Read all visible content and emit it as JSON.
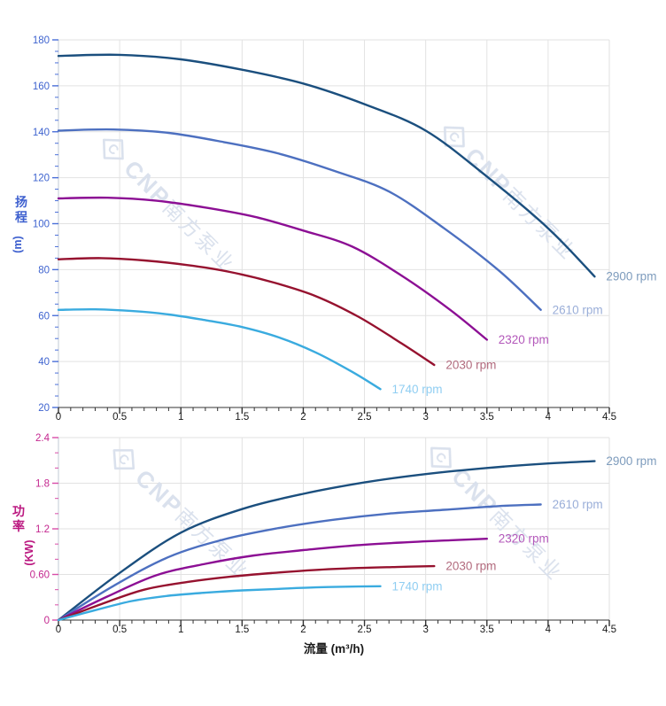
{
  "figure": {
    "background": "#ffffff",
    "grid_color": "#e2e2e2",
    "x_spine_color": "#333333",
    "y_spine_color": "#c2c9d4",
    "x_tick_color": "#333333",
    "x_label_color": "#1a1a1a"
  },
  "watermark": {
    "logo_letter": "C",
    "brand": "CNP",
    "company": "南方泵业",
    "color": "#d9e0ec"
  },
  "x_axis": {
    "title": "流量 (m³/h)",
    "tick_labels": [
      "0",
      "0.5",
      "1",
      "1.5",
      "2",
      "2.5",
      "3",
      "3.5",
      "4",
      "4.5"
    ]
  },
  "chart_data": [
    {
      "id": "head",
      "type": "line",
      "title": "",
      "xlabel": "流量 (m³/h)",
      "ylabel": "扬程 (m)",
      "ylabel_cn": "扬程",
      "ylabel_unit": "(m)",
      "axis_title_color": "#3e60cf",
      "tick_mark_color": "#4a6fd8",
      "tick_label_color": "#3e63cf",
      "xlim": [
        0,
        4.5
      ],
      "ylim": [
        20,
        180
      ],
      "x_major_step": 0.5,
      "x_minor_step": 0.1,
      "y_major_step": 20,
      "y_minor_step": 5,
      "y_tick_labels": [
        "20",
        "40",
        "60",
        "80",
        "100",
        "120",
        "140",
        "160",
        "180"
      ],
      "x_tick_labels": [
        "0",
        "0.5",
        "1",
        "1.5",
        "2",
        "2.5",
        "3",
        "3.5",
        "4",
        "4.5"
      ],
      "grid": true,
      "legend_position": "end-of-curve",
      "series": [
        {
          "name": "2900 rpm",
          "color": "#1b4f7e",
          "label_color": "#7e9cbd",
          "points": [
            [
              0,
              173
            ],
            [
              0.5,
              173.5
            ],
            [
              1,
              171.5
            ],
            [
              1.5,
              167
            ],
            [
              2,
              161
            ],
            [
              2.5,
              152
            ],
            [
              3,
              140.5
            ],
            [
              3.5,
              120.5
            ],
            [
              4,
              98
            ],
            [
              4.38,
              77
            ]
          ]
        },
        {
          "name": "2610 rpm",
          "color": "#4d70c0",
          "label_color": "#9aaed8",
          "points": [
            [
              0,
              140.5
            ],
            [
              0.45,
              141
            ],
            [
              0.9,
              139.5
            ],
            [
              1.35,
              135.5
            ],
            [
              1.8,
              130.5
            ],
            [
              2.25,
              123
            ],
            [
              2.7,
              114
            ],
            [
              3.15,
              98
            ],
            [
              3.6,
              79.5
            ],
            [
              3.94,
              62.5
            ]
          ]
        },
        {
          "name": "2320 rpm",
          "color": "#8c0f94",
          "label_color": "#b358ba",
          "points": [
            [
              0,
              111
            ],
            [
              0.4,
              111.3
            ],
            [
              0.8,
              110
            ],
            [
              1.2,
              107
            ],
            [
              1.6,
              103
            ],
            [
              2,
              97
            ],
            [
              2.4,
              90
            ],
            [
              2.8,
              77.5
            ],
            [
              3.2,
              62.5
            ],
            [
              3.5,
              49.5
            ]
          ]
        },
        {
          "name": "2030 rpm",
          "color": "#96122f",
          "label_color": "#b26b7e",
          "points": [
            [
              0,
              84.5
            ],
            [
              0.35,
              85
            ],
            [
              0.7,
              84
            ],
            [
              1.05,
              82
            ],
            [
              1.4,
              79
            ],
            [
              1.75,
              74.5
            ],
            [
              2.1,
              68.5
            ],
            [
              2.45,
              59.5
            ],
            [
              2.8,
              48
            ],
            [
              3.07,
              38.5
            ]
          ]
        },
        {
          "name": "1740 rpm",
          "color": "#3aabdf",
          "label_color": "#90cef2",
          "points": [
            [
              0,
              62.5
            ],
            [
              0.3,
              62.7
            ],
            [
              0.6,
              62
            ],
            [
              0.9,
              60.5
            ],
            [
              1.2,
              58
            ],
            [
              1.5,
              55
            ],
            [
              1.8,
              50.5
            ],
            [
              2.1,
              44
            ],
            [
              2.4,
              35.5
            ],
            [
              2.63,
              28
            ]
          ]
        }
      ]
    },
    {
      "id": "power",
      "type": "line",
      "title": "",
      "xlabel": "流量 (m³/h)",
      "ylabel": "功率 (KW)",
      "ylabel_cn": "功率",
      "ylabel_unit": "(KW)",
      "axis_title_color": "#bb1880",
      "tick_mark_color": "#d84da8",
      "tick_label_color": "#c4278f",
      "xlim": [
        0,
        4.5
      ],
      "ylim": [
        0,
        2.4
      ],
      "x_major_step": 0.5,
      "x_minor_step": 0.1,
      "y_major_step": 0.6,
      "y_minor_step": 0.2,
      "y_tick_labels": [
        "0",
        "0.60",
        "1.2",
        "1.8",
        "2.4"
      ],
      "x_tick_labels": [
        "0",
        "0.5",
        "1",
        "1.5",
        "2",
        "2.5",
        "3",
        "3.5",
        "4",
        "4.5"
      ],
      "grid": true,
      "legend_position": "end-of-curve",
      "series": [
        {
          "name": "2900 rpm",
          "color": "#1b4f7e",
          "label_color": "#7e9cbd",
          "points": [
            [
              0,
              0
            ],
            [
              0.5,
              0.62
            ],
            [
              1,
              1.15
            ],
            [
              1.5,
              1.46
            ],
            [
              2,
              1.66
            ],
            [
              2.5,
              1.81
            ],
            [
              3,
              1.92
            ],
            [
              3.5,
              2.0
            ],
            [
              4,
              2.06
            ],
            [
              4.38,
              2.09
            ]
          ]
        },
        {
          "name": "2610 rpm",
          "color": "#4d70c0",
          "label_color": "#9aaed8",
          "points": [
            [
              0,
              0
            ],
            [
              0.45,
              0.45
            ],
            [
              0.9,
              0.83
            ],
            [
              1.35,
              1.06
            ],
            [
              1.8,
              1.21
            ],
            [
              2.25,
              1.32
            ],
            [
              2.7,
              1.4
            ],
            [
              3.15,
              1.45
            ],
            [
              3.6,
              1.5
            ],
            [
              3.94,
              1.52
            ]
          ]
        },
        {
          "name": "2320 rpm",
          "color": "#8c0f94",
          "label_color": "#b358ba",
          "points": [
            [
              0,
              0
            ],
            [
              0.4,
              0.31
            ],
            [
              0.8,
              0.59
            ],
            [
              1.2,
              0.74
            ],
            [
              1.6,
              0.85
            ],
            [
              2,
              0.92
            ],
            [
              2.4,
              0.98
            ],
            [
              2.8,
              1.02
            ],
            [
              3.2,
              1.05
            ],
            [
              3.5,
              1.07
            ]
          ]
        },
        {
          "name": "2030 rpm",
          "color": "#96122f",
          "label_color": "#b26b7e",
          "points": [
            [
              0,
              0
            ],
            [
              0.35,
              0.21
            ],
            [
              0.7,
              0.4
            ],
            [
              1.05,
              0.5
            ],
            [
              1.4,
              0.57
            ],
            [
              1.75,
              0.62
            ],
            [
              2.1,
              0.66
            ],
            [
              2.45,
              0.685
            ],
            [
              2.8,
              0.7
            ],
            [
              3.07,
              0.71
            ]
          ]
        },
        {
          "name": "1740 rpm",
          "color": "#3aabdf",
          "label_color": "#90cef2",
          "points": [
            [
              0,
              0
            ],
            [
              0.3,
              0.13
            ],
            [
              0.6,
              0.25
            ],
            [
              0.9,
              0.32
            ],
            [
              1.2,
              0.36
            ],
            [
              1.5,
              0.39
            ],
            [
              1.8,
              0.41
            ],
            [
              2.1,
              0.43
            ],
            [
              2.4,
              0.44
            ],
            [
              2.63,
              0.445
            ]
          ]
        }
      ]
    }
  ]
}
